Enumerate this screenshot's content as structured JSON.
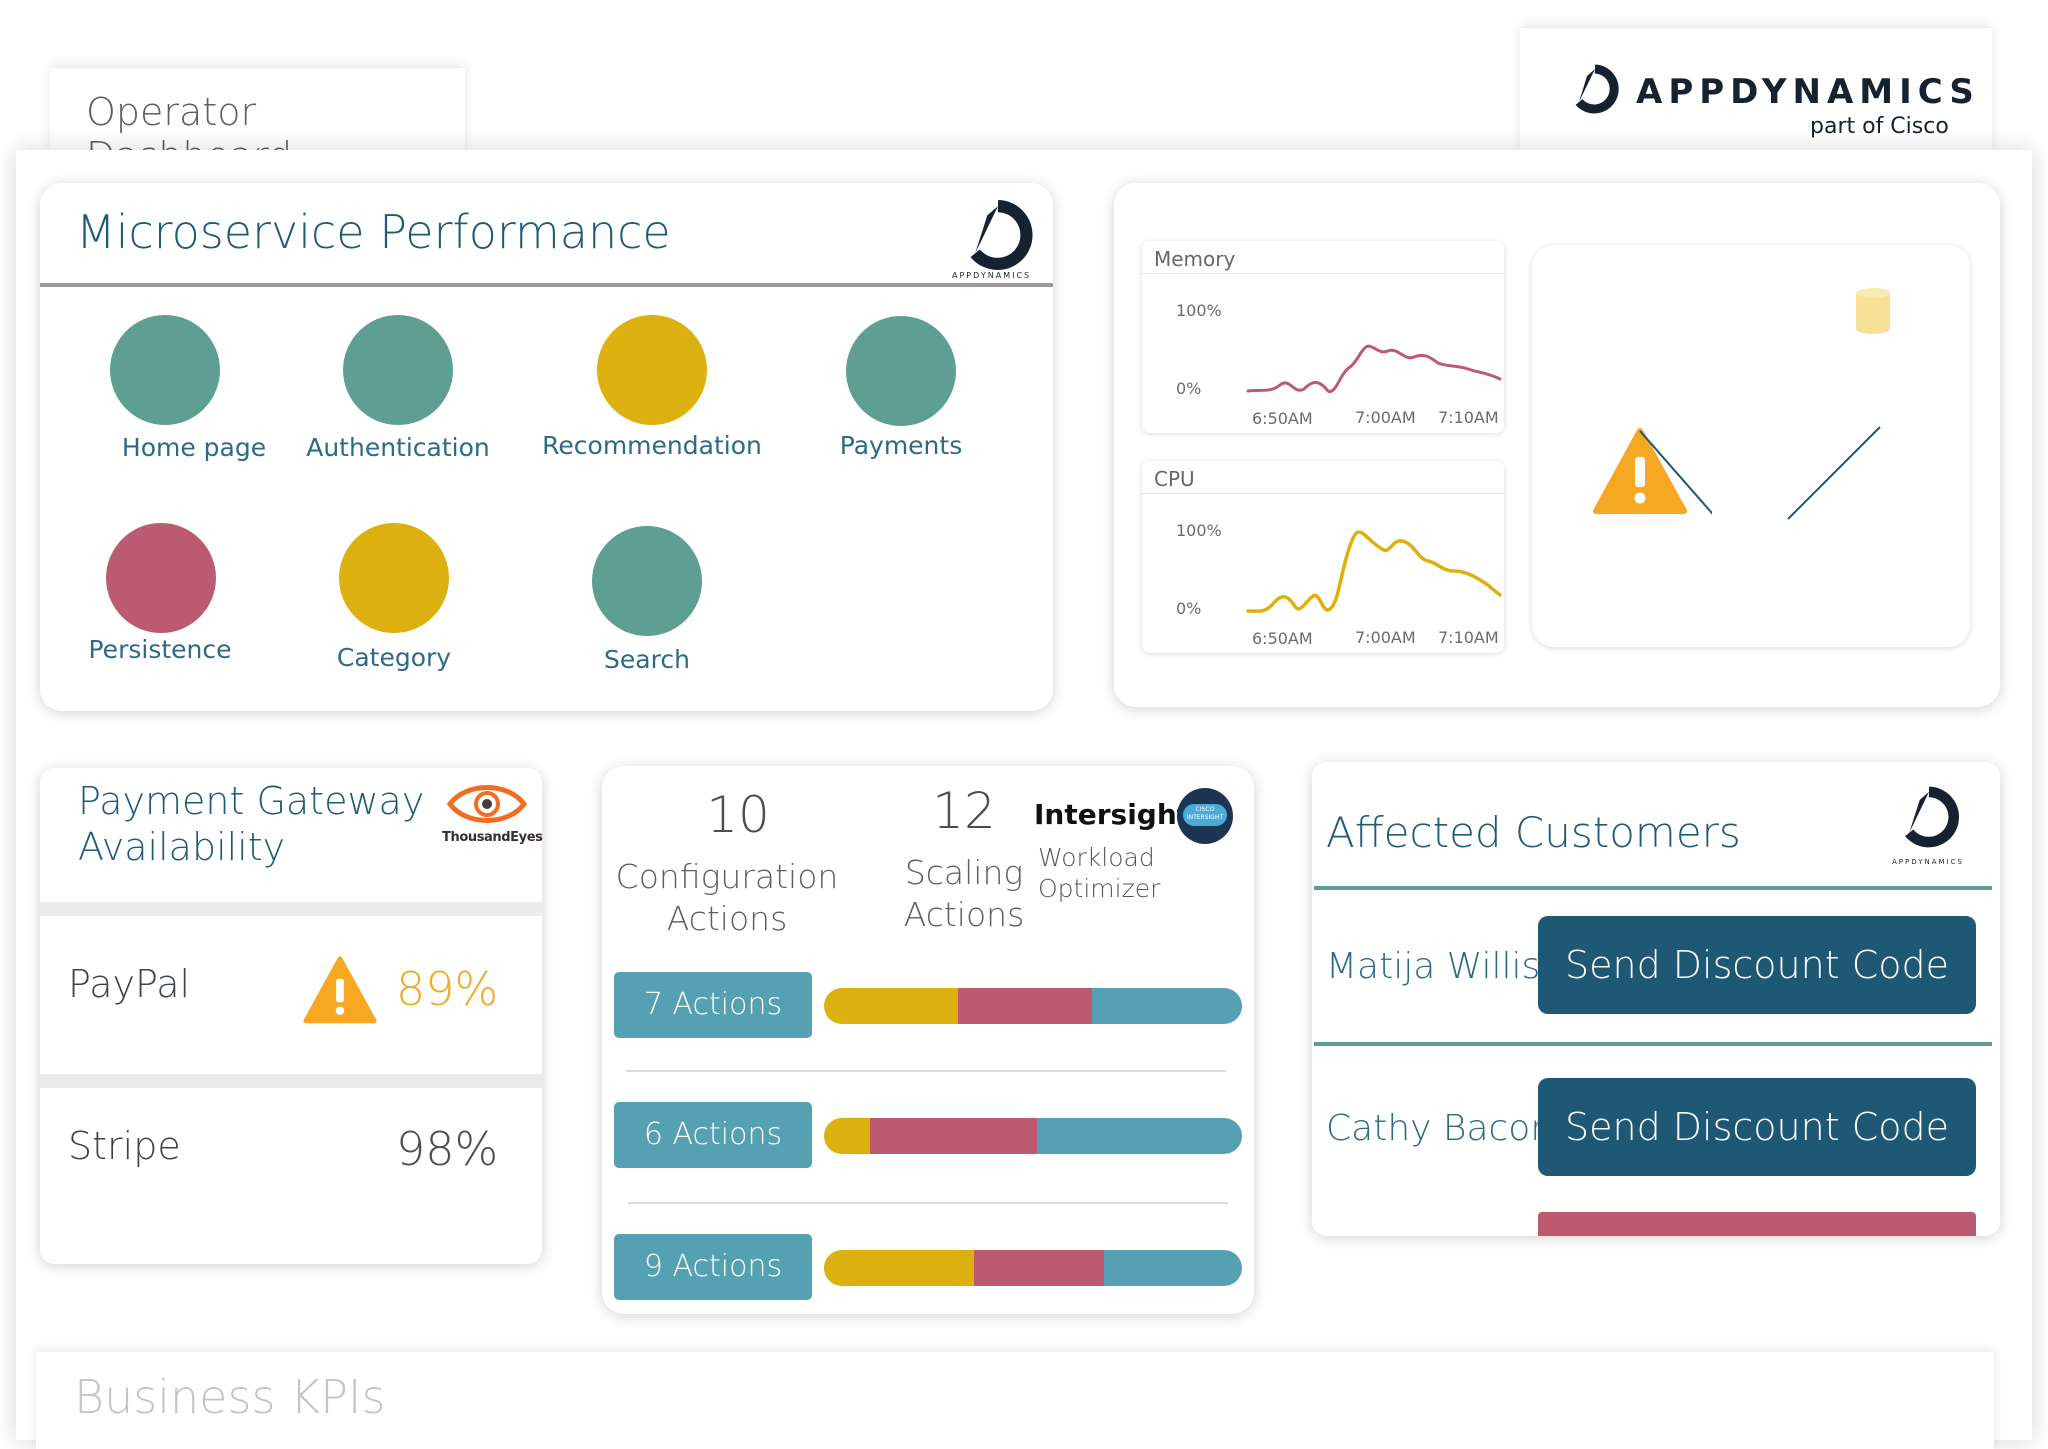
{
  "page": {
    "title": "Operator Dashboard"
  },
  "brand": {
    "name": "APPDYNAMICS",
    "sub": "part of Cisco",
    "small_logo_text": "APPDYNAMICS"
  },
  "colors": {
    "teal": "#5f9f92",
    "yellow": "#dcb00e",
    "red": "#bb5a70",
    "blue": "#55a1b3",
    "navy": "#1e5875",
    "warning": "#f7a823"
  },
  "microservice": {
    "title": "Microservice Performance",
    "services": [
      {
        "label": "Home page",
        "status": "healthy",
        "color": "#5f9f92"
      },
      {
        "label": "Authentication",
        "status": "healthy",
        "color": "#5f9f92"
      },
      {
        "label": "Recommendation",
        "status": "warning",
        "color": "#dcb00e"
      },
      {
        "label": "Payments",
        "status": "healthy",
        "color": "#5f9f92"
      },
      {
        "label": "Persistence",
        "status": "critical",
        "color": "#bb5a70"
      },
      {
        "label": "Category",
        "status": "warning",
        "color": "#dcb00e"
      },
      {
        "label": "Search",
        "status": "healthy",
        "color": "#5f9f92"
      }
    ]
  },
  "metrics": {
    "memory": {
      "title": "Memory",
      "y_top": "100%",
      "y_bottom": "0%",
      "x_ticks": [
        "6:50AM",
        "7:00AM",
        "7:10AM"
      ],
      "line_color": "#bb5a70"
    },
    "cpu": {
      "title": "CPU",
      "y_top": "100%",
      "y_bottom": "0%",
      "x_ticks": [
        "6:50AM",
        "7:00AM",
        "7:10AM"
      ],
      "line_color": "#dcb00e"
    }
  },
  "payment_gateway": {
    "title_line1": "Payment Gateway",
    "title_line2": "Availability",
    "partner_logo": "ThousandEyes",
    "rows": [
      {
        "name": "PayPal",
        "value": "89%",
        "warning": true
      },
      {
        "name": "Stripe",
        "value": "98%",
        "warning": false
      }
    ]
  },
  "intersight": {
    "config_count": "10",
    "config_label_1": "Configuration",
    "config_label_2": "Actions",
    "scaling_count": "12",
    "scaling_label_1": "Scaling",
    "scaling_label_2": "Actions",
    "logo_title": "Intersight",
    "logo_sub_1": "Workload",
    "logo_sub_2": "Optimizer",
    "badge_text": "CISCO INTERSIGHT",
    "actions": [
      {
        "label": "7 Actions",
        "segments": [
          0.32,
          0.32,
          0.36
        ]
      },
      {
        "label": "6 Actions",
        "segments": [
          0.11,
          0.4,
          0.49
        ]
      },
      {
        "label": "9 Actions",
        "segments": [
          0.36,
          0.31,
          0.33
        ]
      }
    ]
  },
  "customers": {
    "title": "Affected Customers",
    "rows": [
      {
        "name": "Matija Willis",
        "button": "Send Discount Code"
      },
      {
        "name": "Cathy Bacon",
        "button": "Send Discount Code"
      }
    ]
  },
  "bottom": {
    "title": "Business KPIs"
  }
}
